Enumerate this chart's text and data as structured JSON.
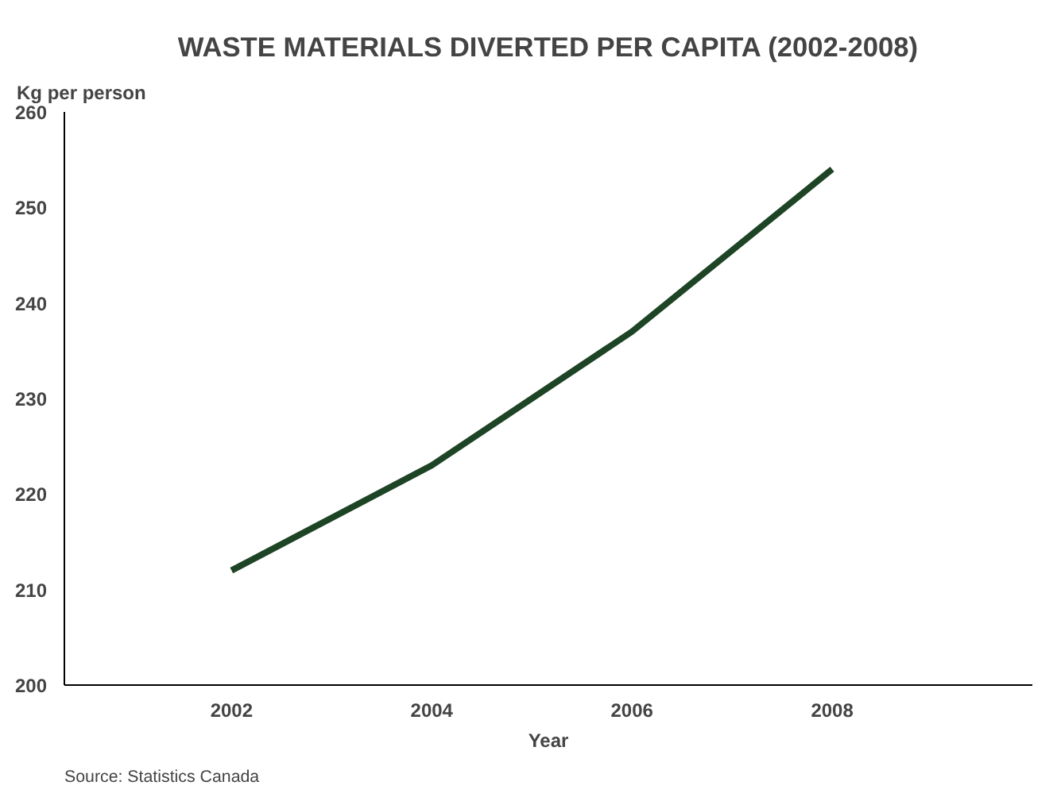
{
  "chart_data": {
    "type": "line",
    "title": "WASTE MATERIALS DIVERTED PER CAPITA (2002-2008)",
    "xlabel": "Year",
    "ylabel": "Kg per person",
    "x": [
      2002,
      2004,
      2006,
      2008
    ],
    "series": [
      {
        "color": "#1e4426",
        "values": [
          212,
          223,
          237,
          254
        ]
      }
    ],
    "xlim": [
      2000.33,
      2010
    ],
    "xticks": [
      2002,
      2004,
      2006,
      2008
    ],
    "ylim": [
      200,
      260
    ],
    "yticks": [
      200,
      210,
      220,
      230,
      240,
      250,
      260
    ],
    "grid": false,
    "marker": "none",
    "line_style": "solid",
    "annotations": [
      "Source: Statistics Canada"
    ]
  }
}
